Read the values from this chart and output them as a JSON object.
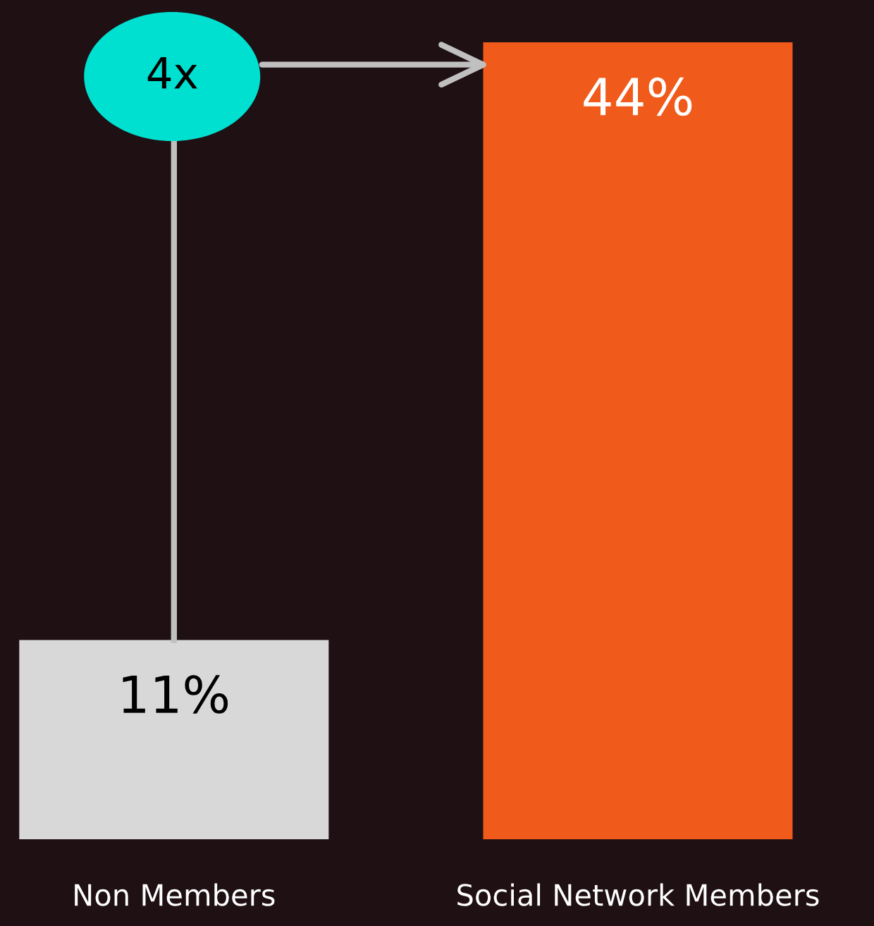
{
  "chart_data": {
    "type": "bar",
    "categories": [
      "Non Members",
      "Social Network Members"
    ],
    "values": [
      11,
      44
    ],
    "colors": [
      "#d8d8d8",
      "#f05a1a"
    ],
    "value_labels": [
      "11%",
      "44%"
    ],
    "annotations": [
      "4x"
    ],
    "grid": false,
    "legend": false
  }
}
